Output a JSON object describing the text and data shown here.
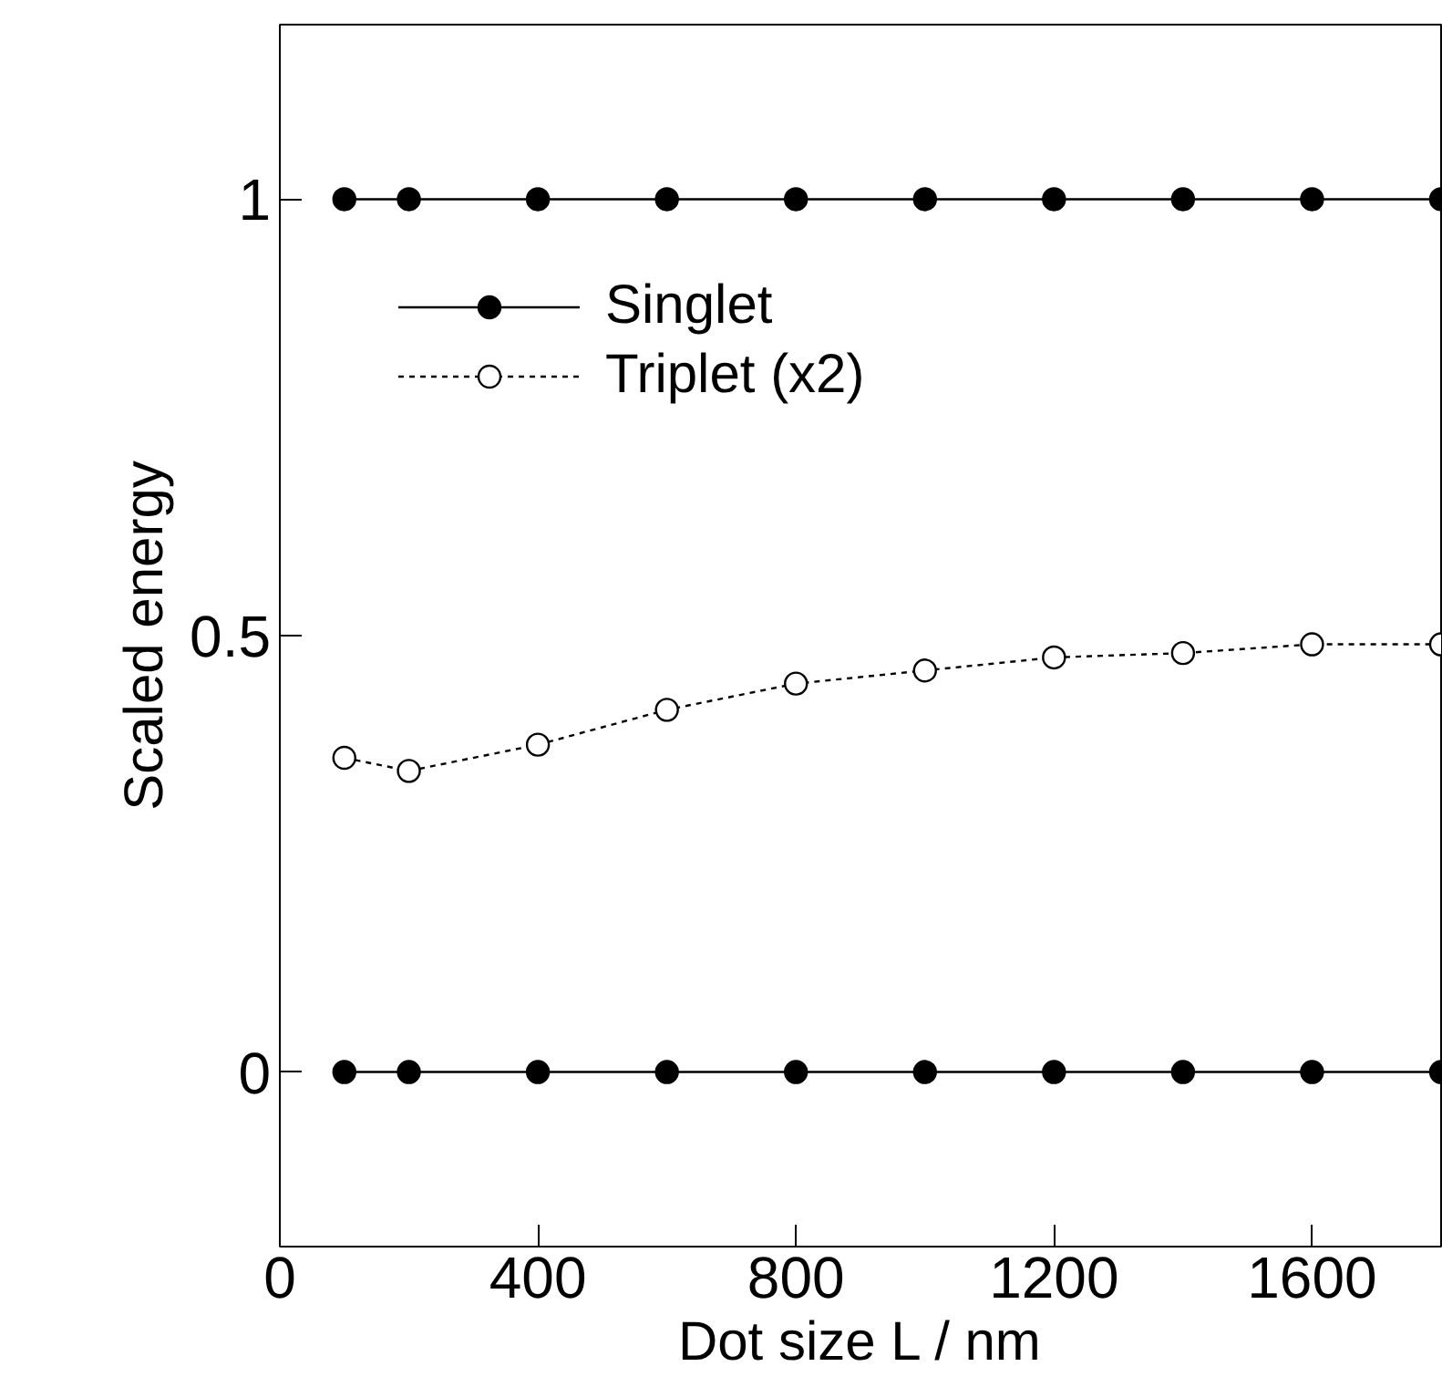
{
  "chart_data": {
    "type": "line",
    "xlabel": "Dot size L / nm",
    "ylabel": "Scaled energy",
    "x": [
      100,
      200,
      400,
      600,
      800,
      1000,
      1200,
      1400,
      1600,
      1800
    ],
    "series": [
      {
        "name": "Singlet",
        "color": "#000000",
        "values": [
          1,
          1,
          1,
          1,
          1,
          1,
          1,
          1,
          1,
          1
        ],
        "marker": "circle",
        "line_style": "solid"
      },
      {
        "color": "#000000",
        "values": [
          0,
          0,
          0,
          0,
          0,
          0,
          0,
          0,
          0,
          0
        ],
        "marker": "circle",
        "line_style": "solid"
      },
      {
        "name": "Triplet (x2)",
        "color": "#000000",
        "values": [
          0.36,
          0.345,
          0.375,
          0.415,
          0.445,
          0.46,
          0.475,
          0.48,
          0.49,
          0.49
        ],
        "marker": "circle",
        "line_style": "dashed"
      }
    ],
    "xlim": [
      0,
      1800
    ],
    "ylim": [
      -0.2,
      1.2
    ],
    "xticks": [
      0,
      400,
      800,
      1200,
      1600
    ],
    "yticks": [
      0,
      0.5,
      1
    ],
    "grid": false,
    "legend": "top left"
  }
}
